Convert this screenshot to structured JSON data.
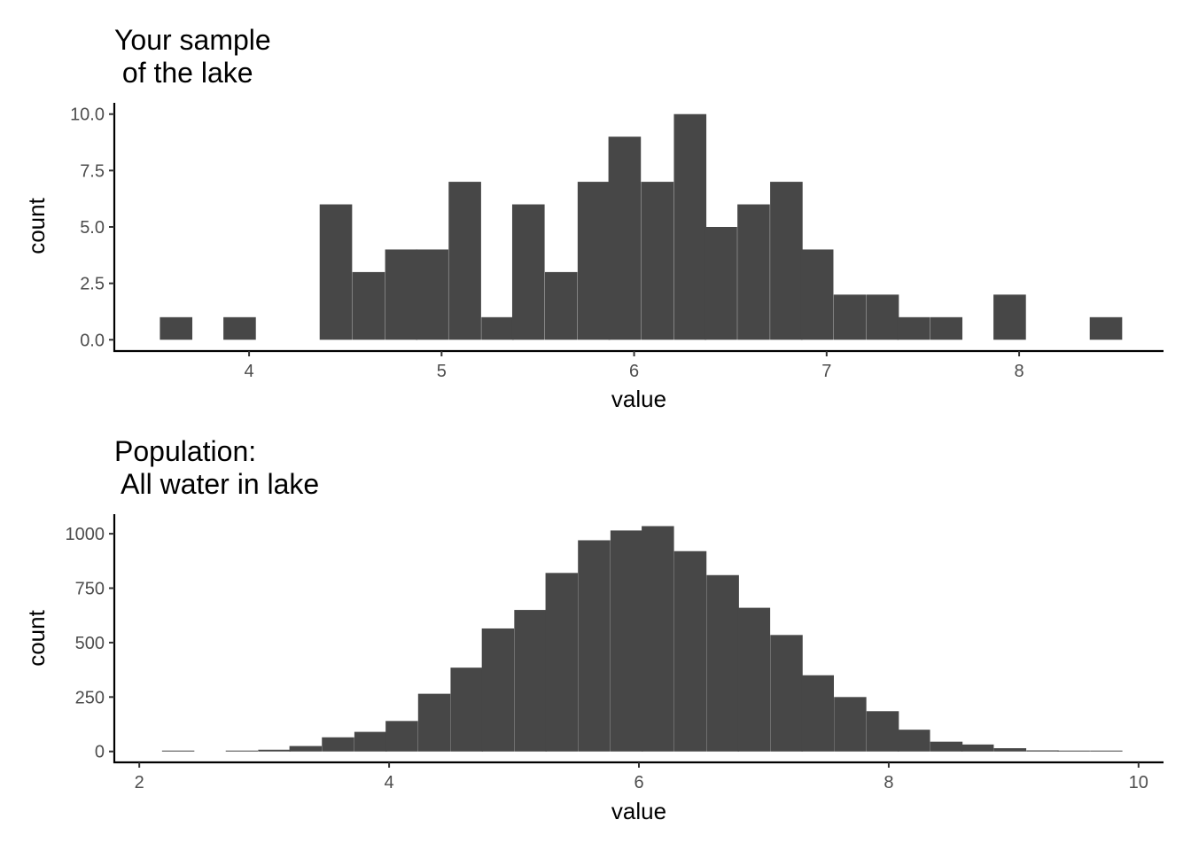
{
  "colors": {
    "bar": "#474747",
    "axis": "#000000",
    "tick_text": "#4d4d4d"
  },
  "chart_data": [
    {
      "type": "bar",
      "title_lines": [
        "Your sample",
        " of the lake"
      ],
      "xlabel": "value",
      "ylabel": "count",
      "xlim": [
        3.3,
        8.75
      ],
      "ylim": [
        -0.5,
        10.5
      ],
      "x_ticks": [
        4,
        5,
        6,
        7,
        8
      ],
      "x_tick_labels": [
        "4",
        "5",
        "6",
        "7",
        "8"
      ],
      "y_ticks": [
        0,
        2.5,
        5,
        7.5,
        10
      ],
      "y_tick_labels": [
        "0.0",
        "2.5",
        "5.0",
        "7.5",
        "10.0"
      ],
      "bin_width": 0.1667,
      "bins": [
        {
          "x": 3.62,
          "count": 1
        },
        {
          "x": 3.79,
          "count": 0
        },
        {
          "x": 3.95,
          "count": 1
        },
        {
          "x": 4.12,
          "count": 0
        },
        {
          "x": 4.29,
          "count": 0
        },
        {
          "x": 4.45,
          "count": 6
        },
        {
          "x": 4.62,
          "count": 3
        },
        {
          "x": 4.79,
          "count": 4
        },
        {
          "x": 4.95,
          "count": 4
        },
        {
          "x": 5.12,
          "count": 7
        },
        {
          "x": 5.29,
          "count": 1
        },
        {
          "x": 5.45,
          "count": 6
        },
        {
          "x": 5.62,
          "count": 3
        },
        {
          "x": 5.79,
          "count": 7
        },
        {
          "x": 5.95,
          "count": 9
        },
        {
          "x": 6.12,
          "count": 7
        },
        {
          "x": 6.29,
          "count": 10
        },
        {
          "x": 6.45,
          "count": 5
        },
        {
          "x": 6.62,
          "count": 6
        },
        {
          "x": 6.79,
          "count": 7
        },
        {
          "x": 6.95,
          "count": 4
        },
        {
          "x": 7.12,
          "count": 2
        },
        {
          "x": 7.29,
          "count": 2
        },
        {
          "x": 7.45,
          "count": 1
        },
        {
          "x": 7.62,
          "count": 1
        },
        {
          "x": 7.79,
          "count": 0
        },
        {
          "x": 7.95,
          "count": 2
        },
        {
          "x": 8.12,
          "count": 0
        },
        {
          "x": 8.29,
          "count": 0
        },
        {
          "x": 8.45,
          "count": 1
        }
      ],
      "grid": false
    },
    {
      "type": "bar",
      "title_lines": [
        "Population:",
        " All water in lake"
      ],
      "xlabel": "value",
      "ylabel": "count",
      "xlim": [
        1.8,
        10.2
      ],
      "ylim": [
        -50,
        1090
      ],
      "x_ticks": [
        2,
        4,
        6,
        8,
        10
      ],
      "x_tick_labels": [
        "2",
        "4",
        "6",
        "8",
        "10"
      ],
      "y_ticks": [
        0,
        250,
        500,
        750,
        1000
      ],
      "y_tick_labels": [
        "0",
        "250",
        "500",
        "750",
        "1000"
      ],
      "bin_width": 0.256,
      "bins": [
        {
          "x": 2.31,
          "count": 2
        },
        {
          "x": 2.57,
          "count": 0
        },
        {
          "x": 2.82,
          "count": 3
        },
        {
          "x": 3.08,
          "count": 8
        },
        {
          "x": 3.33,
          "count": 25
        },
        {
          "x": 3.59,
          "count": 65
        },
        {
          "x": 3.85,
          "count": 90
        },
        {
          "x": 4.1,
          "count": 140
        },
        {
          "x": 4.36,
          "count": 265
        },
        {
          "x": 4.62,
          "count": 385
        },
        {
          "x": 4.87,
          "count": 565
        },
        {
          "x": 5.13,
          "count": 650
        },
        {
          "x": 5.38,
          "count": 820
        },
        {
          "x": 5.64,
          "count": 970
        },
        {
          "x": 5.9,
          "count": 1015
        },
        {
          "x": 6.15,
          "count": 1035
        },
        {
          "x": 6.41,
          "count": 920
        },
        {
          "x": 6.67,
          "count": 810
        },
        {
          "x": 6.92,
          "count": 660
        },
        {
          "x": 7.18,
          "count": 535
        },
        {
          "x": 7.43,
          "count": 350
        },
        {
          "x": 7.69,
          "count": 250
        },
        {
          "x": 7.95,
          "count": 185
        },
        {
          "x": 8.2,
          "count": 100
        },
        {
          "x": 8.46,
          "count": 45
        },
        {
          "x": 8.71,
          "count": 32
        },
        {
          "x": 8.97,
          "count": 15
        },
        {
          "x": 9.23,
          "count": 5
        },
        {
          "x": 9.48,
          "count": 3
        },
        {
          "x": 9.74,
          "count": 2
        }
      ],
      "grid": false
    }
  ]
}
